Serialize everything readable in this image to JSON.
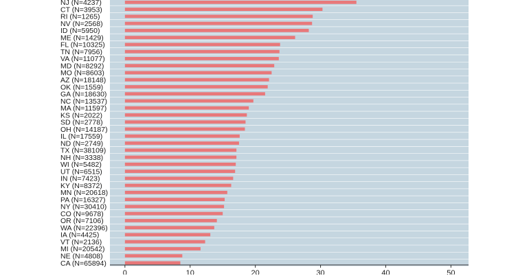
{
  "chart_data": {
    "type": "bar",
    "orientation": "horizontal",
    "categories": [
      "NJ (N=4237)",
      "CT (N=3953)",
      "RI (N=1265)",
      "NV (N=2568)",
      "ID (N=5950)",
      "ME (N=1429)",
      "FL (N=10325)",
      "TN (N=7956)",
      "VA (N=11077)",
      "MD (N=8292)",
      "MO (N=8603)",
      "AZ (N=18148)",
      "OK (N=1559)",
      "GA (N=18630)",
      "NC (N=13537)",
      "MA (N=11597)",
      "KS (N=2022)",
      "SD (N=2778)",
      "OH (N=14187)",
      "IL (N=17559)",
      "ND (N=2749)",
      "TX (N=38109)",
      "NH (N=3338)",
      "WI (N=5482)",
      "UT (N=6515)",
      "IN (N=7423)",
      "KY (N=8372)",
      "MN (N=20618)",
      "PA (N=16327)",
      "NY (N=30410)",
      "CO (N=9678)",
      "OR (N=7106)",
      "WA (N=22396)",
      "IA (N=4425)",
      "VT (N=2136)",
      "MI (N=20542)",
      "NE (N=4808)",
      "CA (N=65894)"
    ],
    "values": [
      35.5,
      30.3,
      28.8,
      28.7,
      28.2,
      26.1,
      23.8,
      23.7,
      23.6,
      22.9,
      22.5,
      22.1,
      21.9,
      21.5,
      19.7,
      19.0,
      18.7,
      18.5,
      18.4,
      17.6,
      17.5,
      17.1,
      17.1,
      17.0,
      16.9,
      16.6,
      16.3,
      15.7,
      15.3,
      15.2,
      15.0,
      14.1,
      13.7,
      13.1,
      12.3,
      11.6,
      8.8,
      8.5
    ],
    "xticks": [
      0,
      10,
      20,
      30,
      40,
      50
    ],
    "xlim": [
      -2.3,
      52.7
    ],
    "grid": true,
    "colors": {
      "bar": "#e8787a",
      "stripe": "#c5d6e0",
      "separator": "#ffffff",
      "axis": "#333333",
      "text": "#1a1a1a"
    }
  }
}
